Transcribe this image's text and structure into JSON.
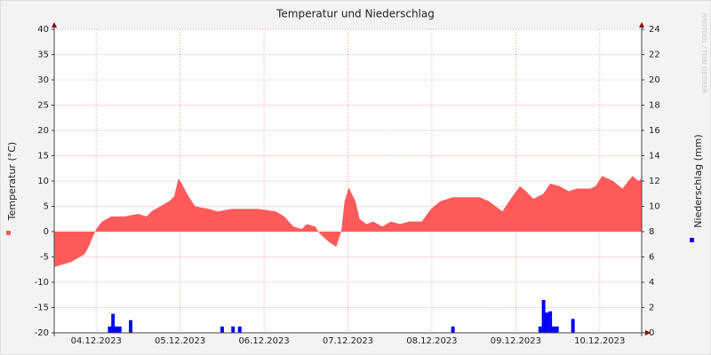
{
  "chart_data": {
    "type": "combo",
    "title": "Temperatur und Niederschlag",
    "y_label": "Temperatur (°C)",
    "y2_label": "Niederschlag (mm)",
    "watermark": "RRDTOOL / TOBI OETIKER",
    "xlim": [
      0,
      7
    ],
    "xticks": [
      {
        "value": 0.5,
        "label": "04.12.2023"
      },
      {
        "value": 1.5,
        "label": "05.12.2023"
      },
      {
        "value": 2.5,
        "label": "06.12.2023"
      },
      {
        "value": 3.5,
        "label": "07.12.2023"
      },
      {
        "value": 4.5,
        "label": "08.12.2023"
      },
      {
        "value": 5.5,
        "label": "09.12.2023"
      },
      {
        "value": 6.5,
        "label": "10.12.2023"
      }
    ],
    "ylim": [
      -20,
      40
    ],
    "yticks": [
      40,
      35,
      30,
      25,
      20,
      15,
      10,
      5,
      0,
      -5,
      -10,
      -15,
      -20
    ],
    "y2lim": [
      0,
      24
    ],
    "y2ticks": [
      24,
      22,
      20,
      18,
      16,
      14,
      12,
      10,
      8,
      6,
      4,
      2,
      0
    ],
    "grid": true,
    "series": [
      {
        "type": "area",
        "color": "#ff5a5a",
        "x": [
          0,
          0.2,
          0.36,
          0.41,
          0.5,
          0.57,
          0.68,
          0.84,
          1.0,
          1.1,
          1.16,
          1.21,
          1.37,
          1.43,
          1.48,
          1.52,
          1.6,
          1.68,
          1.84,
          1.95,
          2.11,
          2.43,
          2.64,
          2.74,
          2.85,
          2.95,
          3.01,
          3.11,
          3.17,
          3.27,
          3.36,
          3.42,
          3.46,
          3.51,
          3.59,
          3.64,
          3.72,
          3.8,
          3.91,
          4.01,
          4.12,
          4.23,
          4.38,
          4.49,
          4.6,
          4.75,
          5.07,
          5.18,
          5.34,
          5.44,
          5.55,
          5.62,
          5.71,
          5.83,
          5.91,
          6.02,
          6.13,
          6.23,
          6.39,
          6.45,
          6.53,
          6.66,
          6.77,
          6.89,
          6.96,
          7.0
        ],
        "values": [
          -7,
          -6,
          -4.5,
          -3,
          0.5,
          2,
          3,
          3,
          3.5,
          3,
          4,
          4.5,
          6,
          7,
          10.5,
          9.5,
          7,
          5,
          4.5,
          4,
          4.5,
          4.5,
          4,
          3,
          1,
          0.5,
          1.5,
          1,
          -0.5,
          -2,
          -3,
          0,
          6,
          8.7,
          6,
          2.5,
          1.5,
          2,
          1,
          2,
          1.5,
          2,
          2,
          4.5,
          6,
          6.8,
          6.8,
          6,
          4,
          6.5,
          9,
          8,
          6.5,
          7.5,
          9.5,
          9,
          8,
          8.5,
          8.5,
          9,
          11,
          10,
          8.5,
          11,
          10,
          10.5
        ]
      },
      {
        "type": "bar",
        "axis": "y2",
        "color": "#0000ff",
        "x": [
          0.64,
          0.68,
          0.72,
          0.76,
          0.89,
          1.98,
          2.11,
          2.19,
          4.73,
          5.77,
          5.81,
          5.85,
          5.89,
          5.93,
          5.97,
          6.16
        ],
        "values": [
          0.5,
          1.5,
          0.5,
          0.5,
          1.0,
          0.5,
          0.5,
          0.5,
          0.5,
          0.5,
          2.6,
          1.6,
          1.7,
          0.5,
          0.5,
          1.1
        ]
      }
    ]
  }
}
